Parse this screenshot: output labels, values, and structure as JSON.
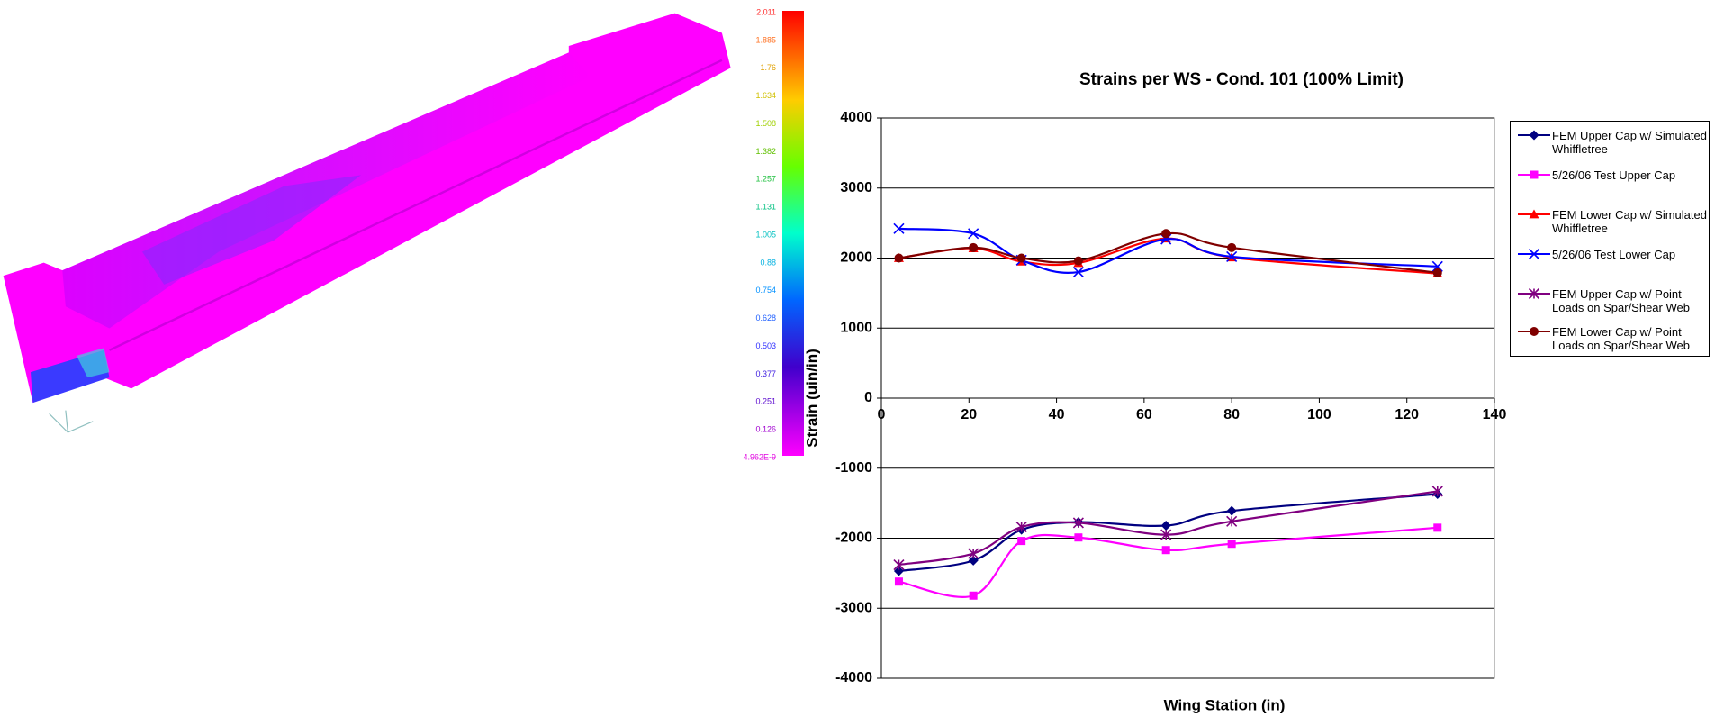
{
  "colorbar": {
    "labels": [
      "2.011",
      "1.885",
      "1.76",
      "1.634",
      "1.508",
      "1.382",
      "1.257",
      "1.131",
      "1.005",
      "0.88",
      "0.754",
      "0.628",
      "0.503",
      "0.377",
      "0.251",
      "0.126",
      "4.962E-9"
    ]
  },
  "chart_data": {
    "type": "line",
    "title": "Strains per WS - Cond. 101 (100% Limit)",
    "x_label": "Wing Station (in)",
    "y_label": "Strain (uin/in)",
    "x": [
      4,
      21,
      32,
      45,
      65,
      80,
      127
    ],
    "xlim": [
      0,
      140
    ],
    "xticks": [
      0,
      20,
      40,
      60,
      80,
      100,
      120,
      140
    ],
    "ylim": [
      -4000,
      4000
    ],
    "yticks": [
      -4000,
      -3000,
      -2000,
      -1000,
      0,
      1000,
      2000,
      3000,
      4000
    ],
    "grid": true,
    "smooth": true,
    "series": [
      {
        "name": "FEM Upper Cap w/ Simulated Whiffletree",
        "color": "#000080",
        "marker": "diamond",
        "values": [
          -2470,
          -2320,
          -1880,
          -1770,
          -1820,
          -1610,
          -1370
        ]
      },
      {
        "name": "5/26/06 Test Upper Cap",
        "color": "#ff00ff",
        "marker": "square",
        "values": [
          -2620,
          -2820,
          -2040,
          -1990,
          -2170,
          -2080,
          -1850
        ]
      },
      {
        "name": "FEM Lower Cap w/ Simulated Whiffletree",
        "color": "#ff0000",
        "marker": "triangle",
        "values": [
          2000,
          2140,
          1950,
          1930,
          2280,
          2010,
          1780
        ]
      },
      {
        "name": "5/26/06 Test Lower Cap",
        "color": "#0000ff",
        "marker": "x",
        "values": [
          2420,
          2350,
          1970,
          1800,
          2270,
          2020,
          1880
        ]
      },
      {
        "name": "FEM Upper Cap w/ Point Loads on Spar/Shear Web",
        "color": "#800080",
        "marker": "star",
        "values": [
          -2380,
          -2220,
          -1840,
          -1780,
          -1950,
          -1760,
          -1330
        ]
      },
      {
        "name": "FEM Lower Cap w/ Point Loads on Spar/Shear Web",
        "color": "#800000",
        "marker": "circle",
        "values": [
          2000,
          2150,
          2000,
          1960,
          2350,
          2150,
          1790
        ]
      }
    ]
  }
}
